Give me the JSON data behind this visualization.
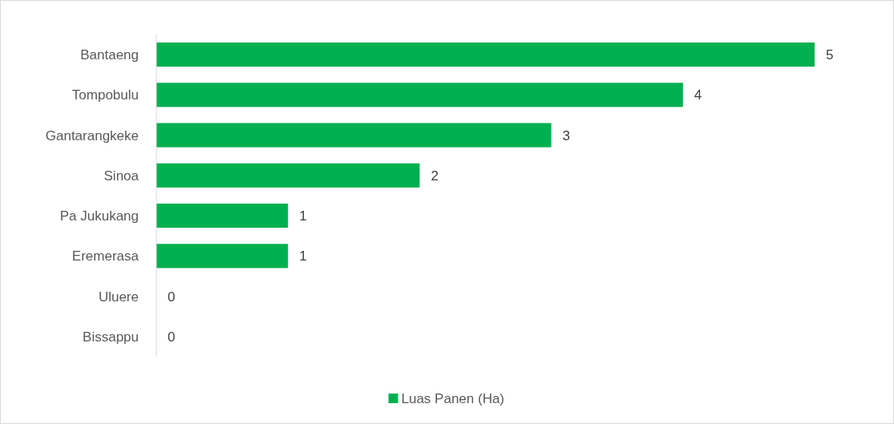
{
  "chart_data": {
    "type": "bar",
    "orientation": "horizontal",
    "categories": [
      "Bantaeng",
      "Tompobulu",
      "Gantarangkeke",
      "Sinoa",
      "Pa Jukukang",
      "Eremerasa",
      "Uluere",
      "Bissappu"
    ],
    "series": [
      {
        "name": "Luas Panen (Ha)",
        "color": "#00b050",
        "values": [
          5,
          4,
          3,
          2,
          1,
          1,
          0,
          0
        ]
      }
    ],
    "data_labels": true,
    "legend": "bottom"
  }
}
